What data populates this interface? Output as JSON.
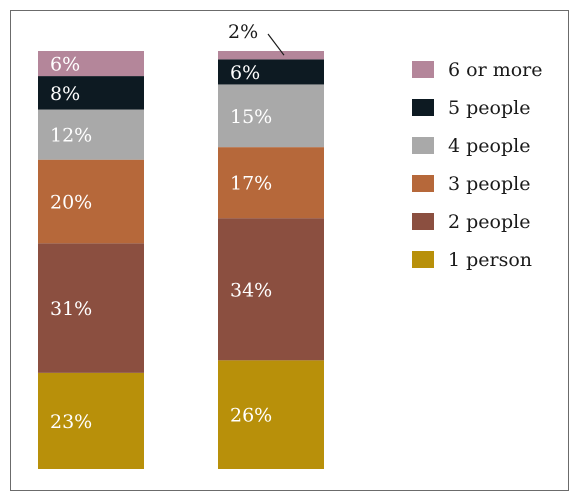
{
  "chart_data": {
    "type": "bar",
    "stacked": true,
    "orientation": "vertical",
    "categories": [
      "",
      ""
    ],
    "series": [
      {
        "name": "1 person",
        "color": "#b8900a",
        "values": [
          23,
          26
        ],
        "labels": [
          "23%",
          "26%"
        ]
      },
      {
        "name": "2 people",
        "color": "#8b4f40",
        "values": [
          31,
          34
        ],
        "labels": [
          "31%",
          "34%"
        ]
      },
      {
        "name": "3 people",
        "color": "#b6683a",
        "values": [
          20,
          17
        ],
        "labels": [
          "20%",
          "17%"
        ]
      },
      {
        "name": "4 people",
        "color": "#a9a9a9",
        "values": [
          12,
          15
        ],
        "labels": [
          "12%",
          "15%"
        ]
      },
      {
        "name": "5 people",
        "color": "#0d1a22",
        "values": [
          8,
          6
        ],
        "labels": [
          "8%",
          "6%"
        ]
      },
      {
        "name": "6 or more",
        "color": "#b4869a",
        "values": [
          6,
          2
        ],
        "labels": [
          "6%",
          "2%"
        ]
      }
    ],
    "legend": {
      "position": "right",
      "order": [
        "6 or more",
        "5 people",
        "4 people",
        "3 people",
        "2 people",
        "1 person"
      ]
    },
    "grid": false,
    "title": "",
    "xlabel": "",
    "ylabel": ""
  }
}
